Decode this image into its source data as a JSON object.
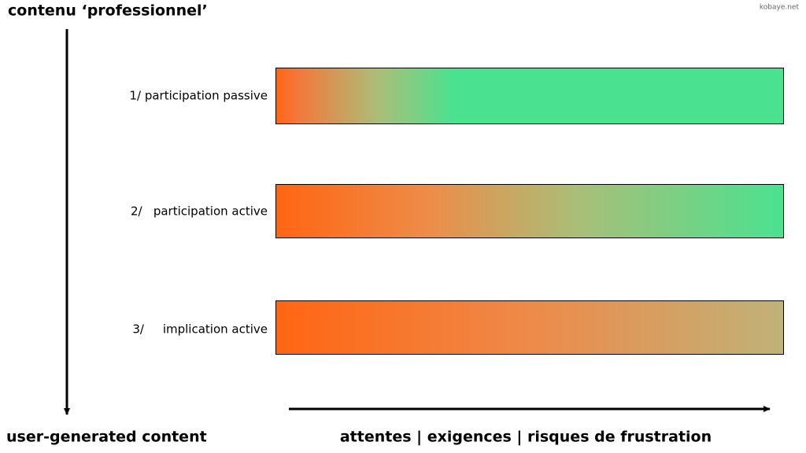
{
  "header": {
    "title": "contenu ‘professionnel’",
    "site": "kobaye.net"
  },
  "rows": [
    {
      "label": "1/ participation passive"
    },
    {
      "label": "2/   participation active"
    },
    {
      "label": "3/     implication active"
    }
  ],
  "footer": {
    "left": "user-generated content",
    "right": "attentes | exigences | risques de frustration"
  }
}
